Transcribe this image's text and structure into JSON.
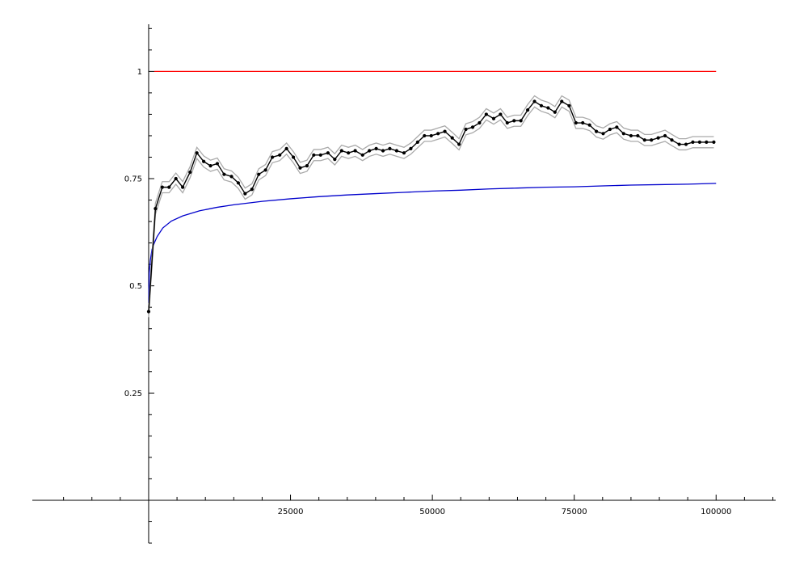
{
  "chart_data": {
    "type": "line",
    "title": "",
    "xlabel": "",
    "ylabel": "",
    "xlim": [
      -20500,
      110500
    ],
    "ylim": [
      -0.1,
      1.11
    ],
    "x_ticks": [
      {
        "value": 25000,
        "label": "25000"
      },
      {
        "value": 50000,
        "label": "50000"
      },
      {
        "value": 75000,
        "label": "75000"
      },
      {
        "value": 100000,
        "label": "100000"
      }
    ],
    "y_ticks": [
      {
        "value": 0.25,
        "label": "0.25"
      },
      {
        "value": 0.5,
        "label": "0.5"
      },
      {
        "value": 0.75,
        "label": "0.75"
      },
      {
        "value": 1,
        "label": "1"
      }
    ],
    "grid": false,
    "legend": "none",
    "series": [
      {
        "color": "#ff0000",
        "kind": "constant",
        "x": [
          1000,
          100000
        ],
        "y": [
          1,
          1
        ]
      },
      {
        "color": "#0000cc",
        "kind": "curve",
        "x": [
          1,
          100,
          300,
          600,
          1000,
          1500,
          2500,
          4000,
          6000,
          9000,
          12000,
          15000,
          20000,
          25000,
          30000,
          35000,
          40000,
          45000,
          50000,
          55000,
          60000,
          65000,
          70000,
          75000,
          80000,
          85000,
          90000,
          95000,
          100000
        ],
        "y": [
          0.46,
          0.53,
          0.56,
          0.585,
          0.6,
          0.615,
          0.635,
          0.651,
          0.663,
          0.675,
          0.683,
          0.689,
          0.697,
          0.703,
          0.708,
          0.712,
          0.715,
          0.718,
          0.721,
          0.723,
          0.726,
          0.728,
          0.73,
          0.731,
          0.733,
          0.735,
          0.736,
          0.737,
          0.739
        ]
      },
      {
        "color": "#000000",
        "band_color": "#aaaaaa",
        "band": 0.013,
        "kind": "points",
        "x": [
          0,
          1200,
          2400,
          3600,
          4800,
          6000,
          7300,
          8500,
          9700,
          10900,
          12100,
          13300,
          14600,
          15800,
          17000,
          18200,
          19400,
          20600,
          21800,
          23100,
          24300,
          25500,
          26700,
          27900,
          29100,
          30300,
          31600,
          32800,
          34000,
          35200,
          36400,
          37700,
          38900,
          40100,
          41300,
          42500,
          43700,
          45000,
          46200,
          47400,
          48600,
          49800,
          51000,
          52200,
          53500,
          54700,
          55900,
          57100,
          58300,
          59500,
          60800,
          62000,
          63200,
          64400,
          65600,
          66800,
          68000,
          69200,
          70400,
          71600,
          72800,
          74100,
          75300,
          76500,
          77700,
          78900,
          80100,
          81300,
          82500,
          83700,
          85000,
          86200,
          87400,
          88600,
          89800,
          91000,
          92200,
          93500,
          94700,
          95900,
          97100,
          98300,
          99600
        ],
        "y": [
          0.44,
          0.68,
          0.73,
          0.73,
          0.75,
          0.73,
          0.765,
          0.81,
          0.79,
          0.78,
          0.785,
          0.76,
          0.755,
          0.74,
          0.715,
          0.725,
          0.76,
          0.77,
          0.8,
          0.805,
          0.82,
          0.8,
          0.775,
          0.78,
          0.805,
          0.805,
          0.81,
          0.795,
          0.815,
          0.81,
          0.815,
          0.805,
          0.815,
          0.82,
          0.815,
          0.82,
          0.815,
          0.81,
          0.82,
          0.835,
          0.85,
          0.85,
          0.855,
          0.86,
          0.845,
          0.83,
          0.865,
          0.87,
          0.88,
          0.9,
          0.89,
          0.9,
          0.88,
          0.885,
          0.885,
          0.91,
          0.93,
          0.92,
          0.915,
          0.905,
          0.93,
          0.92,
          0.88,
          0.88,
          0.875,
          0.86,
          0.855,
          0.865,
          0.87,
          0.855,
          0.85,
          0.85,
          0.84,
          0.84,
          0.845,
          0.85,
          0.84,
          0.83,
          0.83,
          0.835,
          0.835,
          0.835,
          0.835
        ]
      }
    ]
  }
}
